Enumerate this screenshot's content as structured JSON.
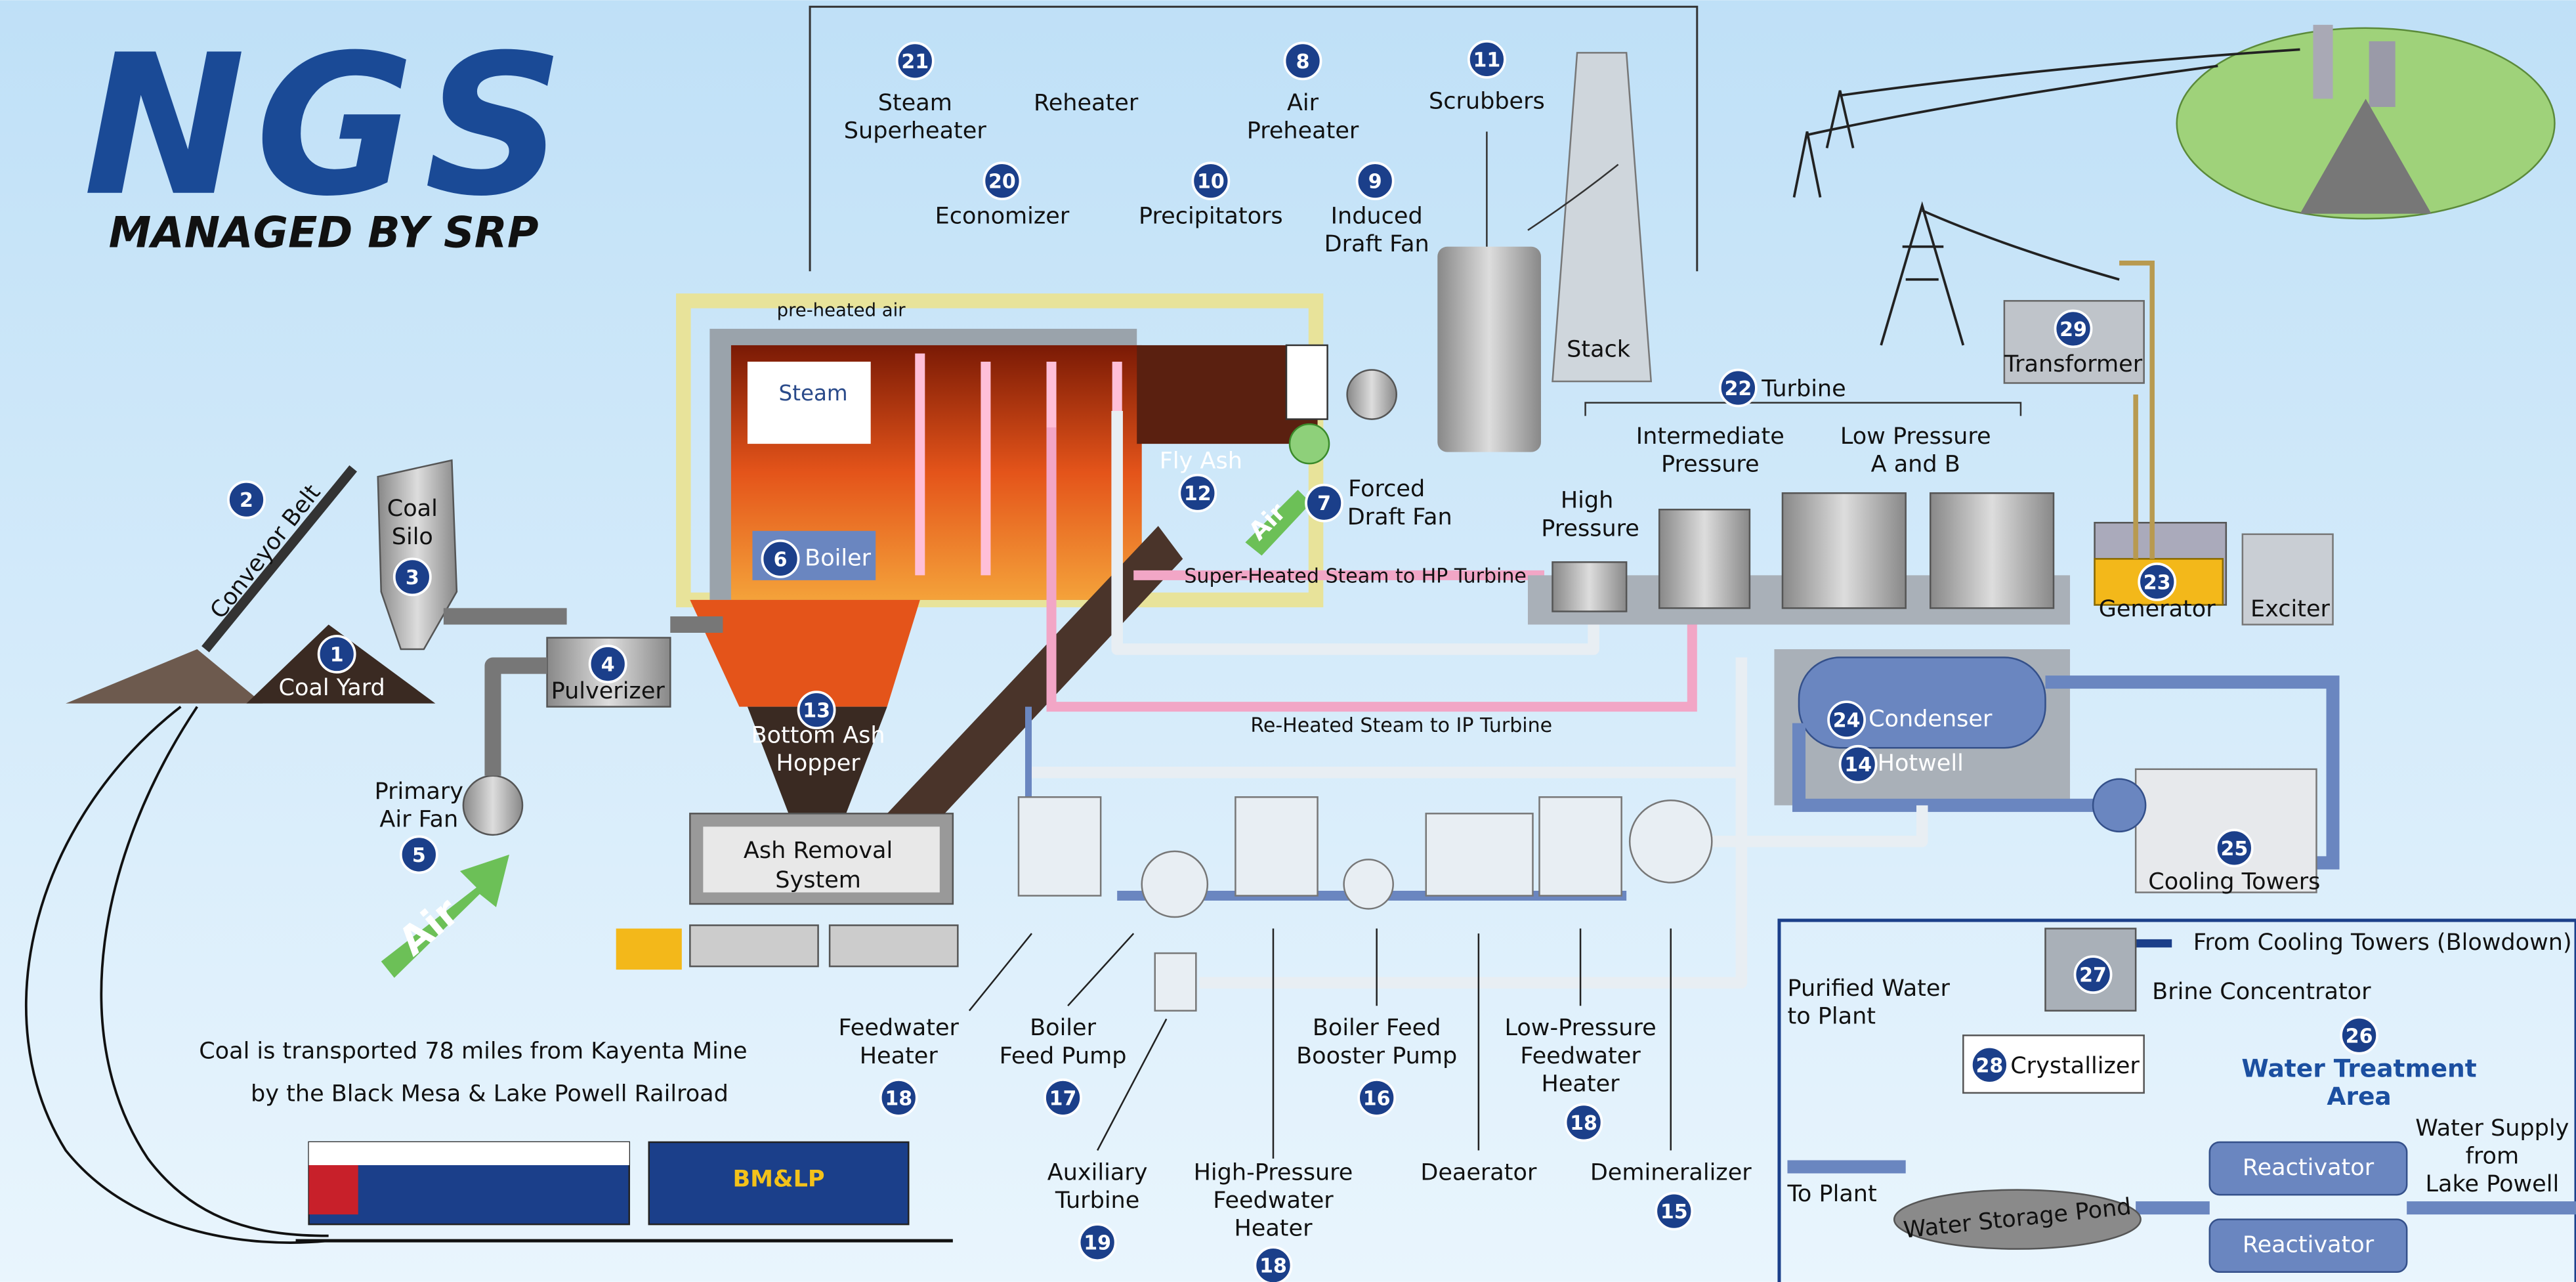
{
  "logo": {
    "mark": "NGS",
    "subtitle": "MANAGED BY SRP"
  },
  "components": [
    {
      "number": 1,
      "label": [
        "Coal Yard"
      ]
    },
    {
      "number": 2,
      "label": [
        "Conveyor Belt"
      ]
    },
    {
      "number": 3,
      "label": [
        "Coal",
        "Silo"
      ]
    },
    {
      "number": 4,
      "label": [
        "Pulverizer"
      ]
    },
    {
      "number": 5,
      "label": [
        "Primary",
        "Air Fan"
      ]
    },
    {
      "number": 6,
      "label": [
        "Boiler"
      ]
    },
    {
      "number": 7,
      "label": [
        "Forced",
        "Draft Fan"
      ]
    },
    {
      "number": 8,
      "label": [
        "Air",
        "Preheater"
      ]
    },
    {
      "number": 9,
      "label": [
        "Induced",
        "Draft Fan"
      ]
    },
    {
      "number": 10,
      "label": [
        "Precipitators"
      ]
    },
    {
      "number": 11,
      "label": [
        "Scrubbers"
      ]
    },
    {
      "number": 12,
      "label": [
        "Fly Ash"
      ]
    },
    {
      "number": 13,
      "label": [
        "Bottom Ash",
        "Hopper"
      ]
    },
    {
      "number": 14,
      "label": [
        "Hotwell"
      ]
    },
    {
      "number": 15,
      "label": [
        "Demineralizer"
      ]
    },
    {
      "number": 16,
      "label": [
        "Boiler Feed",
        "Booster Pump"
      ]
    },
    {
      "number": 17,
      "label": [
        "Boiler",
        "Feed Pump"
      ]
    },
    {
      "number": 18,
      "label": [
        "Feedwater",
        "Heater"
      ]
    },
    {
      "number": 18,
      "label": [
        "High-Pressure",
        "Feedwater",
        "Heater"
      ]
    },
    {
      "number": 18,
      "label": [
        "Low-Pressure",
        "Feedwater",
        "Heater"
      ]
    },
    {
      "number": 19,
      "label": [
        "Auxiliary",
        "Turbine"
      ]
    },
    {
      "number": 20,
      "label": [
        "Economizer"
      ]
    },
    {
      "number": 21,
      "label": [
        "Steam",
        "Superheater"
      ]
    },
    {
      "number": 22,
      "label": [
        "Turbine"
      ]
    },
    {
      "number": 23,
      "label": [
        "Generator"
      ]
    },
    {
      "number": 24,
      "label": [
        "Condenser"
      ]
    },
    {
      "number": 25,
      "label": [
        "Cooling Towers"
      ]
    },
    {
      "number": 26,
      "label": [
        "Water Treatment",
        "Area"
      ]
    },
    {
      "number": 27,
      "label": [
        "Brine Concentrator"
      ]
    },
    {
      "number": 28,
      "label": [
        "Crystallizer"
      ]
    },
    {
      "number": 29,
      "label": [
        "Transformer"
      ]
    }
  ],
  "labels": {
    "reheater": "Reheater",
    "stack": "Stack",
    "steam": "Steam",
    "deaerator": "Deaerator",
    "high_pressure": [
      "High",
      "Pressure"
    ],
    "intermediate_pressure": [
      "Intermediate",
      "Pressure"
    ],
    "low_pressure": [
      "Low Pressure",
      "A and B"
    ],
    "exciter": "Exciter",
    "air_primary": "Air",
    "air_forced": "Air",
    "preheated_air": "pre-heated air",
    "superheated_steam": "Super-Heated Steam to HP Turbine",
    "reheated_steam": "Re-Heated Steam to IP Turbine",
    "ash_removal": [
      "Ash Removal",
      "System"
    ],
    "blowdown": "From Cooling Towers (Blowdown)",
    "purified_water": [
      "Purified Water",
      "to Plant"
    ],
    "to_plant": "To Plant",
    "water_storage": "Water Storage Pond",
    "reactivators": [
      "Reactivator",
      "Reactivator"
    ],
    "water_supply": [
      "Water Supply",
      "from",
      "Lake Powell"
    ],
    "railcar": "BM&LP"
  },
  "caption": [
    "Coal is transported 78 miles from Kayenta Mine",
    "by the Black Mesa & Lake Powell Railroad"
  ]
}
